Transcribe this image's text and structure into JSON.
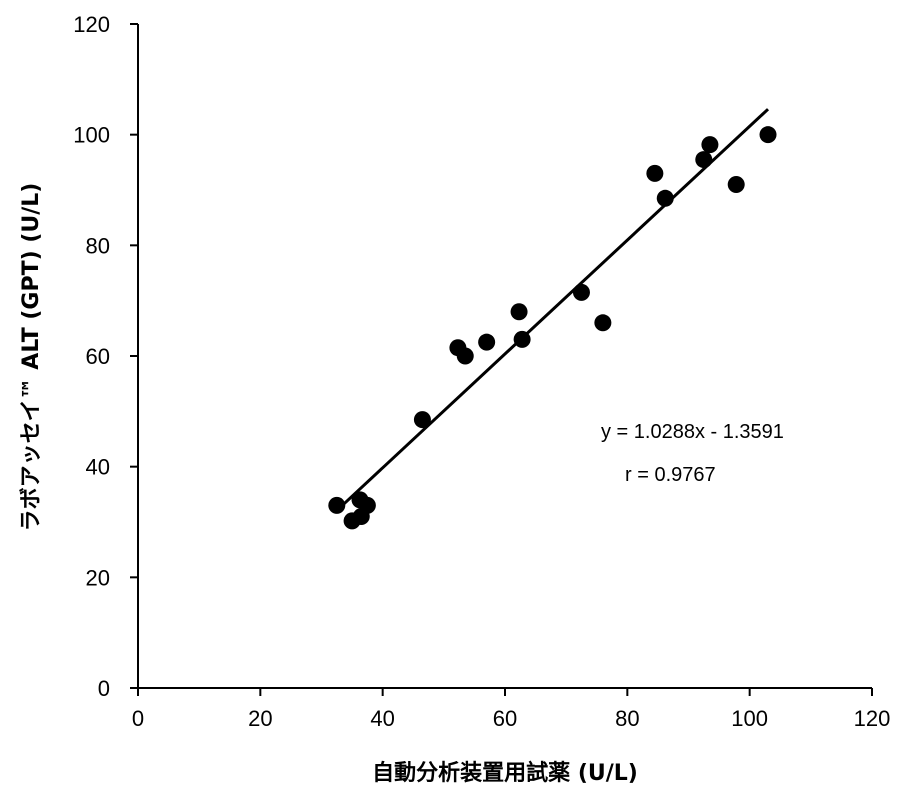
{
  "chart_data": {
    "type": "scatter",
    "xlabel": "自動分析装置用試薬 (U/L)",
    "ylabel": "ラボアッセイ™ ALT (GPT) (U/L)",
    "xlim": [
      0,
      120
    ],
    "ylim": [
      0,
      120
    ],
    "xticks": [
      0,
      20,
      40,
      60,
      80,
      100,
      120
    ],
    "yticks": [
      0,
      20,
      40,
      60,
      80,
      100,
      120
    ],
    "grid": false,
    "points": [
      {
        "x": 32.5,
        "y": 33.0
      },
      {
        "x": 35.0,
        "y": 30.2
      },
      {
        "x": 36.3,
        "y": 34.0
      },
      {
        "x": 36.5,
        "y": 31.0
      },
      {
        "x": 37.5,
        "y": 33.0
      },
      {
        "x": 46.5,
        "y": 48.5
      },
      {
        "x": 52.3,
        "y": 61.5
      },
      {
        "x": 53.5,
        "y": 60.0
      },
      {
        "x": 57.0,
        "y": 62.5
      },
      {
        "x": 62.3,
        "y": 68.0
      },
      {
        "x": 62.8,
        "y": 63.0
      },
      {
        "x": 72.5,
        "y": 71.5
      },
      {
        "x": 76.0,
        "y": 66.0
      },
      {
        "x": 84.5,
        "y": 93.0
      },
      {
        "x": 86.2,
        "y": 88.5
      },
      {
        "x": 92.5,
        "y": 95.5
      },
      {
        "x": 93.5,
        "y": 98.2
      },
      {
        "x": 97.8,
        "y": 91.0
      },
      {
        "x": 103.0,
        "y": 100.0
      }
    ],
    "trendline": {
      "slope": 1.0288,
      "intercept": -1.3591,
      "x_range": [
        33.0,
        103.0
      ]
    },
    "annotations": {
      "equation": "y = 1.0288x - 1.3591",
      "r": "r = 0.9767"
    },
    "colors": {
      "points": "#000000",
      "line": "#000000",
      "axes": "#000000"
    }
  }
}
